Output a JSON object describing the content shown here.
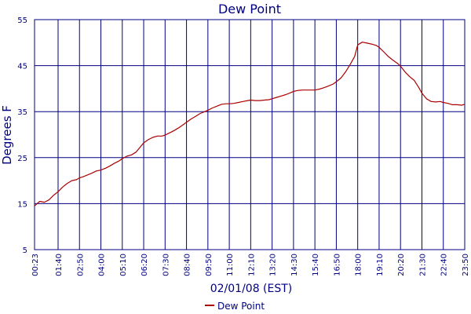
{
  "chart_data": {
    "type": "line",
    "title": "Dew Point",
    "xlabel": "02/01/08 (EST)",
    "ylabel": "Degrees F",
    "ylim": [
      5,
      55
    ],
    "yticks": [
      5,
      15,
      25,
      35,
      45,
      55
    ],
    "xticks": [
      "00:23",
      "01:40",
      "02:50",
      "04:00",
      "05:10",
      "06:20",
      "07:30",
      "08:40",
      "09:50",
      "11:00",
      "12:10",
      "13:20",
      "14:30",
      "15:40",
      "16:50",
      "18:00",
      "19:10",
      "20:20",
      "21:30",
      "22:40",
      "23:50"
    ],
    "grid": true,
    "legend": "bottom-center",
    "colors": {
      "line": "#aa0000",
      "grid": "#000080",
      "text": "#000080"
    },
    "series": [
      {
        "name": "Dew Point",
        "x": [
          "00:23",
          "00:40",
          "00:55",
          "01:10",
          "01:25",
          "01:40",
          "01:55",
          "02:10",
          "02:25",
          "02:40",
          "02:50",
          "03:00",
          "03:15",
          "03:30",
          "03:45",
          "04:00",
          "04:15",
          "04:30",
          "04:45",
          "05:00",
          "05:10",
          "05:25",
          "05:40",
          "05:55",
          "06:10",
          "06:20",
          "06:35",
          "06:50",
          "07:05",
          "07:20",
          "07:30",
          "07:45",
          "08:00",
          "08:15",
          "08:30",
          "08:40",
          "08:55",
          "09:10",
          "09:25",
          "09:40",
          "09:50",
          "10:05",
          "10:20",
          "10:35",
          "10:50",
          "11:00",
          "11:15",
          "11:30",
          "11:45",
          "12:00",
          "12:10",
          "12:25",
          "12:40",
          "12:55",
          "13:10",
          "13:20",
          "13:35",
          "13:50",
          "14:05",
          "14:20",
          "14:30",
          "14:45",
          "15:00",
          "15:15",
          "15:30",
          "15:40",
          "15:55",
          "16:10",
          "16:25",
          "16:40",
          "16:50",
          "17:05",
          "17:20",
          "17:35",
          "17:50",
          "18:00",
          "18:15",
          "18:30",
          "18:45",
          "19:00",
          "19:10",
          "19:25",
          "19:40",
          "19:55",
          "20:10",
          "20:20",
          "20:35",
          "20:50",
          "21:05",
          "21:20",
          "21:30",
          "21:45",
          "22:00",
          "22:15",
          "22:30",
          "22:40",
          "22:55",
          "23:10",
          "23:25",
          "23:40",
          "23:50"
        ],
        "values": [
          14.5,
          15.5,
          15.3,
          15.8,
          16.8,
          17.6,
          18.6,
          19.4,
          20.0,
          20.2,
          20.6,
          20.8,
          21.2,
          21.6,
          22.1,
          22.3,
          22.7,
          23.2,
          23.8,
          24.3,
          24.8,
          25.3,
          25.6,
          26.2,
          27.4,
          28.2,
          28.9,
          29.4,
          29.7,
          29.7,
          29.9,
          30.4,
          30.9,
          31.5,
          32.2,
          32.7,
          33.4,
          34.0,
          34.6,
          35.0,
          35.3,
          35.8,
          36.2,
          36.6,
          36.7,
          36.7,
          36.8,
          37.0,
          37.2,
          37.4,
          37.5,
          37.4,
          37.4,
          37.5,
          37.6,
          37.8,
          38.1,
          38.4,
          38.7,
          39.1,
          39.4,
          39.6,
          39.7,
          39.7,
          39.7,
          39.7,
          39.9,
          40.2,
          40.6,
          41.0,
          41.5,
          42.3,
          43.6,
          45.2,
          47.0,
          49.5,
          50.1,
          49.9,
          49.7,
          49.4,
          49.0,
          48.0,
          47.0,
          46.2,
          45.5,
          44.9,
          43.6,
          42.6,
          41.8,
          40.2,
          39.0,
          37.8,
          37.2,
          37.1,
          37.2,
          37.0,
          36.8,
          36.5,
          36.5,
          36.4,
          36.6
        ]
      }
    ]
  }
}
